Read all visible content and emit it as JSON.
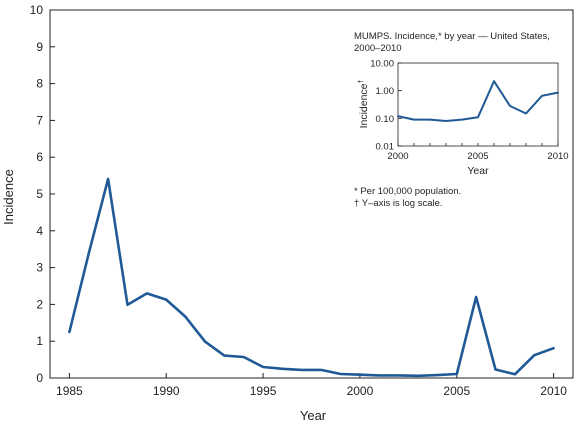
{
  "chart_data": [
    {
      "type": "line",
      "title": "",
      "xlabel": "Year",
      "ylabel": "Incidence",
      "xlim": [
        1984,
        2011
      ],
      "ylim": [
        0,
        10
      ],
      "x_ticks": [
        1985,
        1990,
        1995,
        2000,
        2005,
        2010
      ],
      "y_ticks": [
        0,
        1,
        2,
        3,
        4,
        5,
        6,
        7,
        8,
        9,
        10
      ],
      "grid": false,
      "series_color": "#1f5a96",
      "series": [
        {
          "x": [
            1985,
            1986,
            1987,
            1988,
            1989,
            1990,
            1991,
            1992,
            1993,
            1994,
            1995,
            1996,
            1997,
            1998,
            1999,
            2000,
            2001,
            2002,
            2003,
            2004,
            2005,
            2006,
            2007,
            2008,
            2009,
            2010
          ],
          "values": [
            1.25,
            3.38,
            5.41,
            1.99,
            2.3,
            2.13,
            1.66,
            0.99,
            0.61,
            0.57,
            0.3,
            0.25,
            0.22,
            0.22,
            0.11,
            0.09,
            0.07,
            0.07,
            0.06,
            0.08,
            0.11,
            2.2,
            0.23,
            0.1,
            0.62,
            0.81
          ]
        }
      ]
    },
    {
      "type": "line",
      "title": "MUMPS. Incidence,* by year — United States, 2000–2010",
      "title_lines": [
        "MUMPS. Incidence,* by year — United States,",
        "2000–2010"
      ],
      "xlabel": "Year",
      "ylabel": "Incidence",
      "ylabel_mark": "†",
      "y_scale": "log",
      "xlim": [
        2000,
        2010
      ],
      "ylim": [
        0.01,
        10
      ],
      "x_ticks": [
        2000,
        2005,
        2010
      ],
      "y_ticks": [
        0.01,
        0.1,
        1,
        10
      ],
      "y_tick_labels": [
        "0.01",
        "0.10",
        "1.00",
        "10.00"
      ],
      "grid": false,
      "series_color": "#1f5a96",
      "series": [
        {
          "x": [
            2000,
            2001,
            2002,
            2003,
            2004,
            2005,
            2006,
            2007,
            2008,
            2009,
            2010
          ],
          "values": [
            0.12,
            0.09,
            0.09,
            0.08,
            0.09,
            0.11,
            2.2,
            0.28,
            0.15,
            0.65,
            0.85
          ]
        }
      ]
    }
  ],
  "footnotes": [
    "* Per 100,000 population.",
    "† Y–axis is log scale."
  ]
}
